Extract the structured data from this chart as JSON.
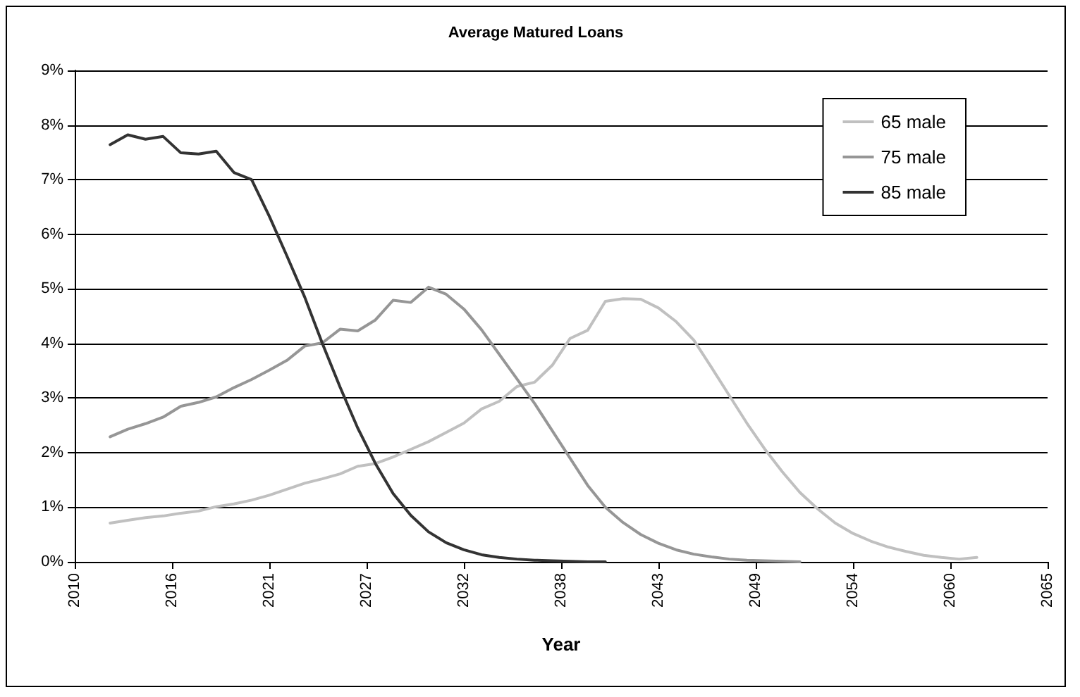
{
  "chart_data": {
    "type": "line",
    "title": "Average Matured Loans",
    "xlabel": "Year",
    "x": [
      2012,
      2013,
      2014,
      2015,
      2016,
      2017,
      2018,
      2019,
      2020,
      2021,
      2022,
      2023,
      2024,
      2025,
      2026,
      2027,
      2028,
      2029,
      2030,
      2031,
      2032,
      2033,
      2034,
      2035,
      2036,
      2037,
      2038,
      2039,
      2040,
      2041,
      2042,
      2043,
      2044,
      2045,
      2046,
      2047,
      2048,
      2049,
      2050,
      2051,
      2052,
      2053,
      2054,
      2055,
      2056,
      2057,
      2058,
      2059,
      2060,
      2061
    ],
    "series": [
      {
        "name": "65 male",
        "color": "#c0c0c0",
        "values": [
          0.71,
          0.76,
          0.81,
          0.84,
          0.89,
          0.93,
          1.01,
          1.06,
          1.13,
          1.22,
          1.33,
          1.44,
          1.52,
          1.61,
          1.75,
          1.8,
          1.92,
          2.06,
          2.2,
          2.37,
          2.54,
          2.8,
          2.94,
          3.21,
          3.29,
          3.6,
          4.09,
          4.24,
          4.77,
          4.82,
          4.81,
          4.65,
          4.4,
          4.06,
          3.56,
          3.05,
          2.54,
          2.07,
          1.65,
          1.27,
          0.97,
          0.71,
          0.52,
          0.38,
          0.27,
          0.19,
          0.12,
          0.08,
          0.05,
          0.08
        ]
      },
      {
        "name": "75 male",
        "color": "#969696",
        "values": [
          2.29,
          2.43,
          2.53,
          2.65,
          2.85,
          2.92,
          3.02,
          3.19,
          3.34,
          3.51,
          3.69,
          3.95,
          4.01,
          4.26,
          4.23,
          4.43,
          4.79,
          4.75,
          5.03,
          4.9,
          4.63,
          4.25,
          3.8,
          3.35,
          2.9,
          2.4,
          1.9,
          1.4,
          1.0,
          0.72,
          0.5,
          0.34,
          0.22,
          0.14,
          0.09,
          0.05,
          0.03,
          0.02,
          0.01,
          0,
          null,
          null,
          null,
          null,
          null,
          null,
          null,
          null,
          null,
          null
        ]
      },
      {
        "name": "85 male",
        "color": "#333333",
        "values": [
          7.64,
          7.82,
          7.74,
          7.79,
          7.49,
          7.47,
          7.52,
          7.13,
          7.0,
          6.33,
          5.6,
          4.85,
          4.0,
          3.2,
          2.45,
          1.8,
          1.25,
          0.85,
          0.55,
          0.35,
          0.22,
          0.13,
          0.08,
          0.05,
          0.03,
          0.02,
          0.01,
          0,
          0,
          null,
          null,
          null,
          null,
          null,
          null,
          null,
          null,
          null,
          null,
          null,
          null,
          null,
          null,
          null,
          null,
          null,
          null,
          null,
          null,
          null
        ]
      }
    ],
    "xlim": [
      2010,
      2065
    ],
    "xticks": [
      2010,
      {
        "value": 2015.5,
        "label": "2016"
      },
      2021,
      {
        "value": 2026.5,
        "label": "2027"
      },
      2032,
      {
        "value": 2037.5,
        "label": "2038"
      },
      2043,
      {
        "value": 2048.5,
        "label": "2049"
      },
      2054,
      {
        "value": 2059.5,
        "label": "2060"
      },
      2065
    ],
    "ylim": [
      0,
      9
    ],
    "yticks": [
      {
        "value": 0,
        "label": "0%"
      },
      {
        "value": 1,
        "label": "1%"
      },
      {
        "value": 2,
        "label": "2%"
      },
      {
        "value": 3,
        "label": "3%"
      },
      {
        "value": 4,
        "label": "4%"
      },
      {
        "value": 5,
        "label": "5%"
      },
      {
        "value": 6,
        "label": "6%"
      },
      {
        "value": 7,
        "label": "7%"
      },
      {
        "value": 8,
        "label": "8%"
      },
      {
        "value": 9,
        "label": "9%"
      }
    ],
    "grid": "y",
    "legend": "top right",
    "marker": "none",
    "line_style": "solid"
  }
}
